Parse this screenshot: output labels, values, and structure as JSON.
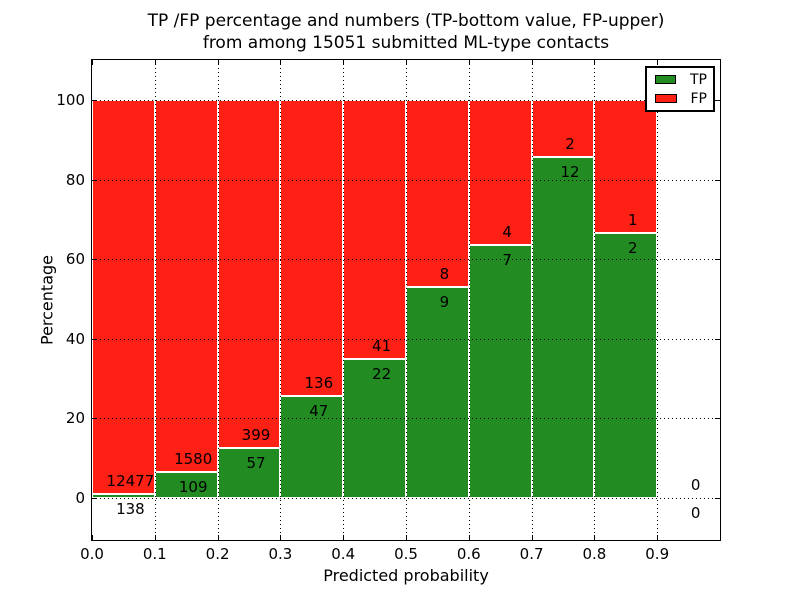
{
  "figure": {
    "title_line1": "TP /FP percentage and numbers (TP-bottom value, FP-upper)",
    "title_line2": "from among 15051 submitted ML-type contacts",
    "xlabel": "Predicted probability",
    "ylabel": "Percentage"
  },
  "legend": {
    "items": [
      {
        "label": "TP",
        "color": "#228b22"
      },
      {
        "label": "FP",
        "color": "#ff2015"
      }
    ]
  },
  "colors": {
    "tp_green": "#228b22",
    "fp_red": "#ff2015",
    "bar_edge": "#ffffff",
    "grid": "#000000"
  },
  "chart_data": {
    "type": "bar",
    "stacked": true,
    "normalized": "percent",
    "title": "TP /FP percentage and numbers (TP-bottom value, FP-upper) from among 15051 submitted ML-type contacts",
    "xlabel": "Predicted probability",
    "ylabel": "Percentage",
    "bin_width": 0.1,
    "categories": [
      "0.0",
      "0.1",
      "0.2",
      "0.3",
      "0.4",
      "0.5",
      "0.6",
      "0.7",
      "0.8",
      "0.9"
    ],
    "series": [
      {
        "name": "TP",
        "color": "#228b22",
        "values": [
          138,
          109,
          57,
          47,
          22,
          9,
          7,
          12,
          2,
          0
        ]
      },
      {
        "name": "FP",
        "color": "#ff2015",
        "values": [
          12477,
          1580,
          399,
          136,
          41,
          8,
          4,
          2,
          1,
          0
        ]
      }
    ],
    "total_contacts": 15051,
    "xlim": [
      0.0,
      1.0
    ],
    "ylim": [
      -10.5,
      110
    ],
    "xticks": [
      "0.0",
      "0.1",
      "0.2",
      "0.3",
      "0.4",
      "0.5",
      "0.6",
      "0.7",
      "0.8",
      "0.9"
    ],
    "yticks": [
      0,
      20,
      40,
      60,
      80,
      100
    ],
    "grid": true,
    "grid_style": "dotted",
    "legend_position": "upper right"
  }
}
